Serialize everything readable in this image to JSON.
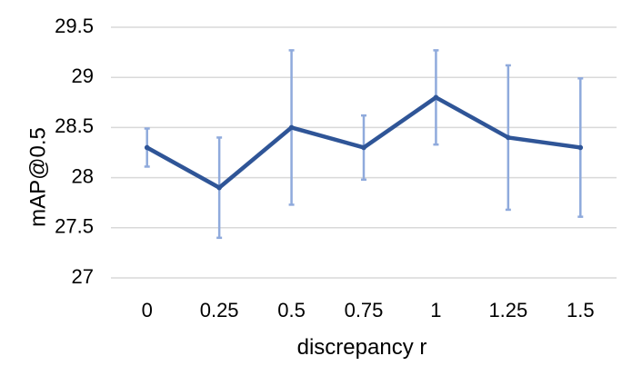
{
  "chart_data": {
    "type": "line",
    "title": "",
    "xlabel": "discrepancy r",
    "ylabel": "mAP@0.5",
    "x": [
      "0",
      "0.25",
      "0.5",
      "0.75",
      "1",
      "1.25",
      "1.5"
    ],
    "yticks": [
      "27",
      "27.5",
      "28",
      "28.5",
      "29",
      "29.5"
    ],
    "ylim": [
      27,
      29.5
    ],
    "grid": true,
    "series": [
      {
        "values": [
          28.3,
          27.9,
          28.5,
          28.3,
          28.8,
          28.4,
          28.3
        ],
        "error_low": [
          28.11,
          27.4,
          27.73,
          27.98,
          28.33,
          27.68,
          27.61
        ],
        "error_high": [
          28.49,
          28.4,
          29.27,
          28.62,
          29.27,
          29.12,
          28.99
        ],
        "color": "#2f5597",
        "error_color": "#8faadc"
      }
    ]
  }
}
